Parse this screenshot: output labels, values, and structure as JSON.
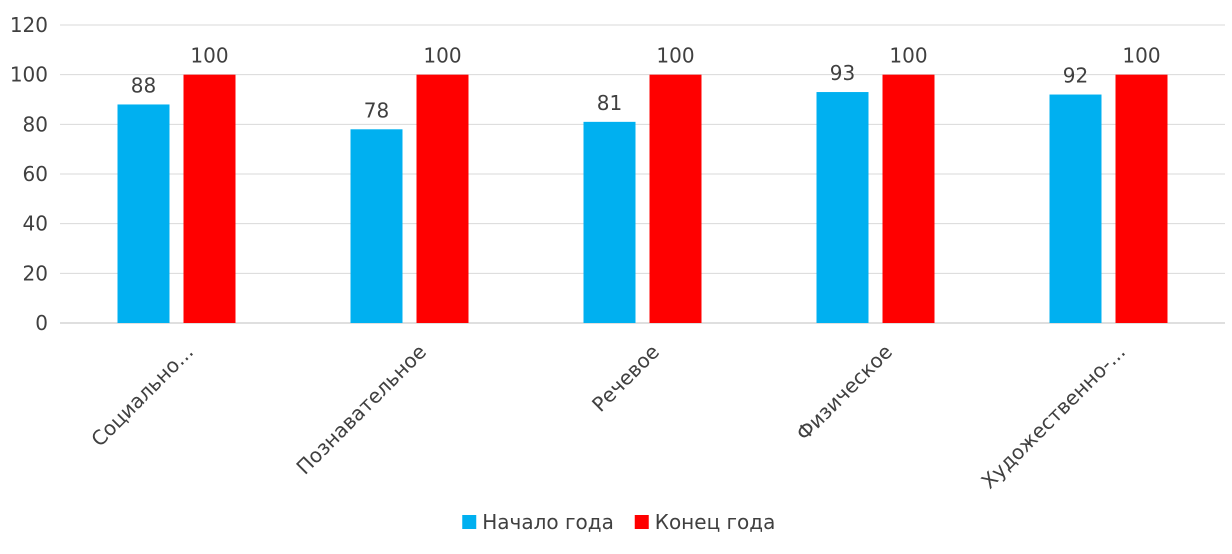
{
  "chart_data": {
    "type": "bar",
    "title": "",
    "xlabel": "",
    "ylabel": "",
    "categories": [
      "Социально...",
      "Познавательное",
      "Речевое",
      "Физическое",
      "Художественно-..."
    ],
    "series": [
      {
        "name": "Начало года",
        "values": [
          88,
          78,
          81,
          93,
          92
        ],
        "color": "#00b0f0"
      },
      {
        "name": "Конец года",
        "values": [
          100,
          100,
          100,
          100,
          100
        ],
        "color": "#ff0000"
      }
    ],
    "ylim": [
      0,
      120
    ],
    "yticks": [
      0,
      20,
      40,
      60,
      80,
      100,
      120
    ],
    "grid": true,
    "legend": "bottom"
  }
}
